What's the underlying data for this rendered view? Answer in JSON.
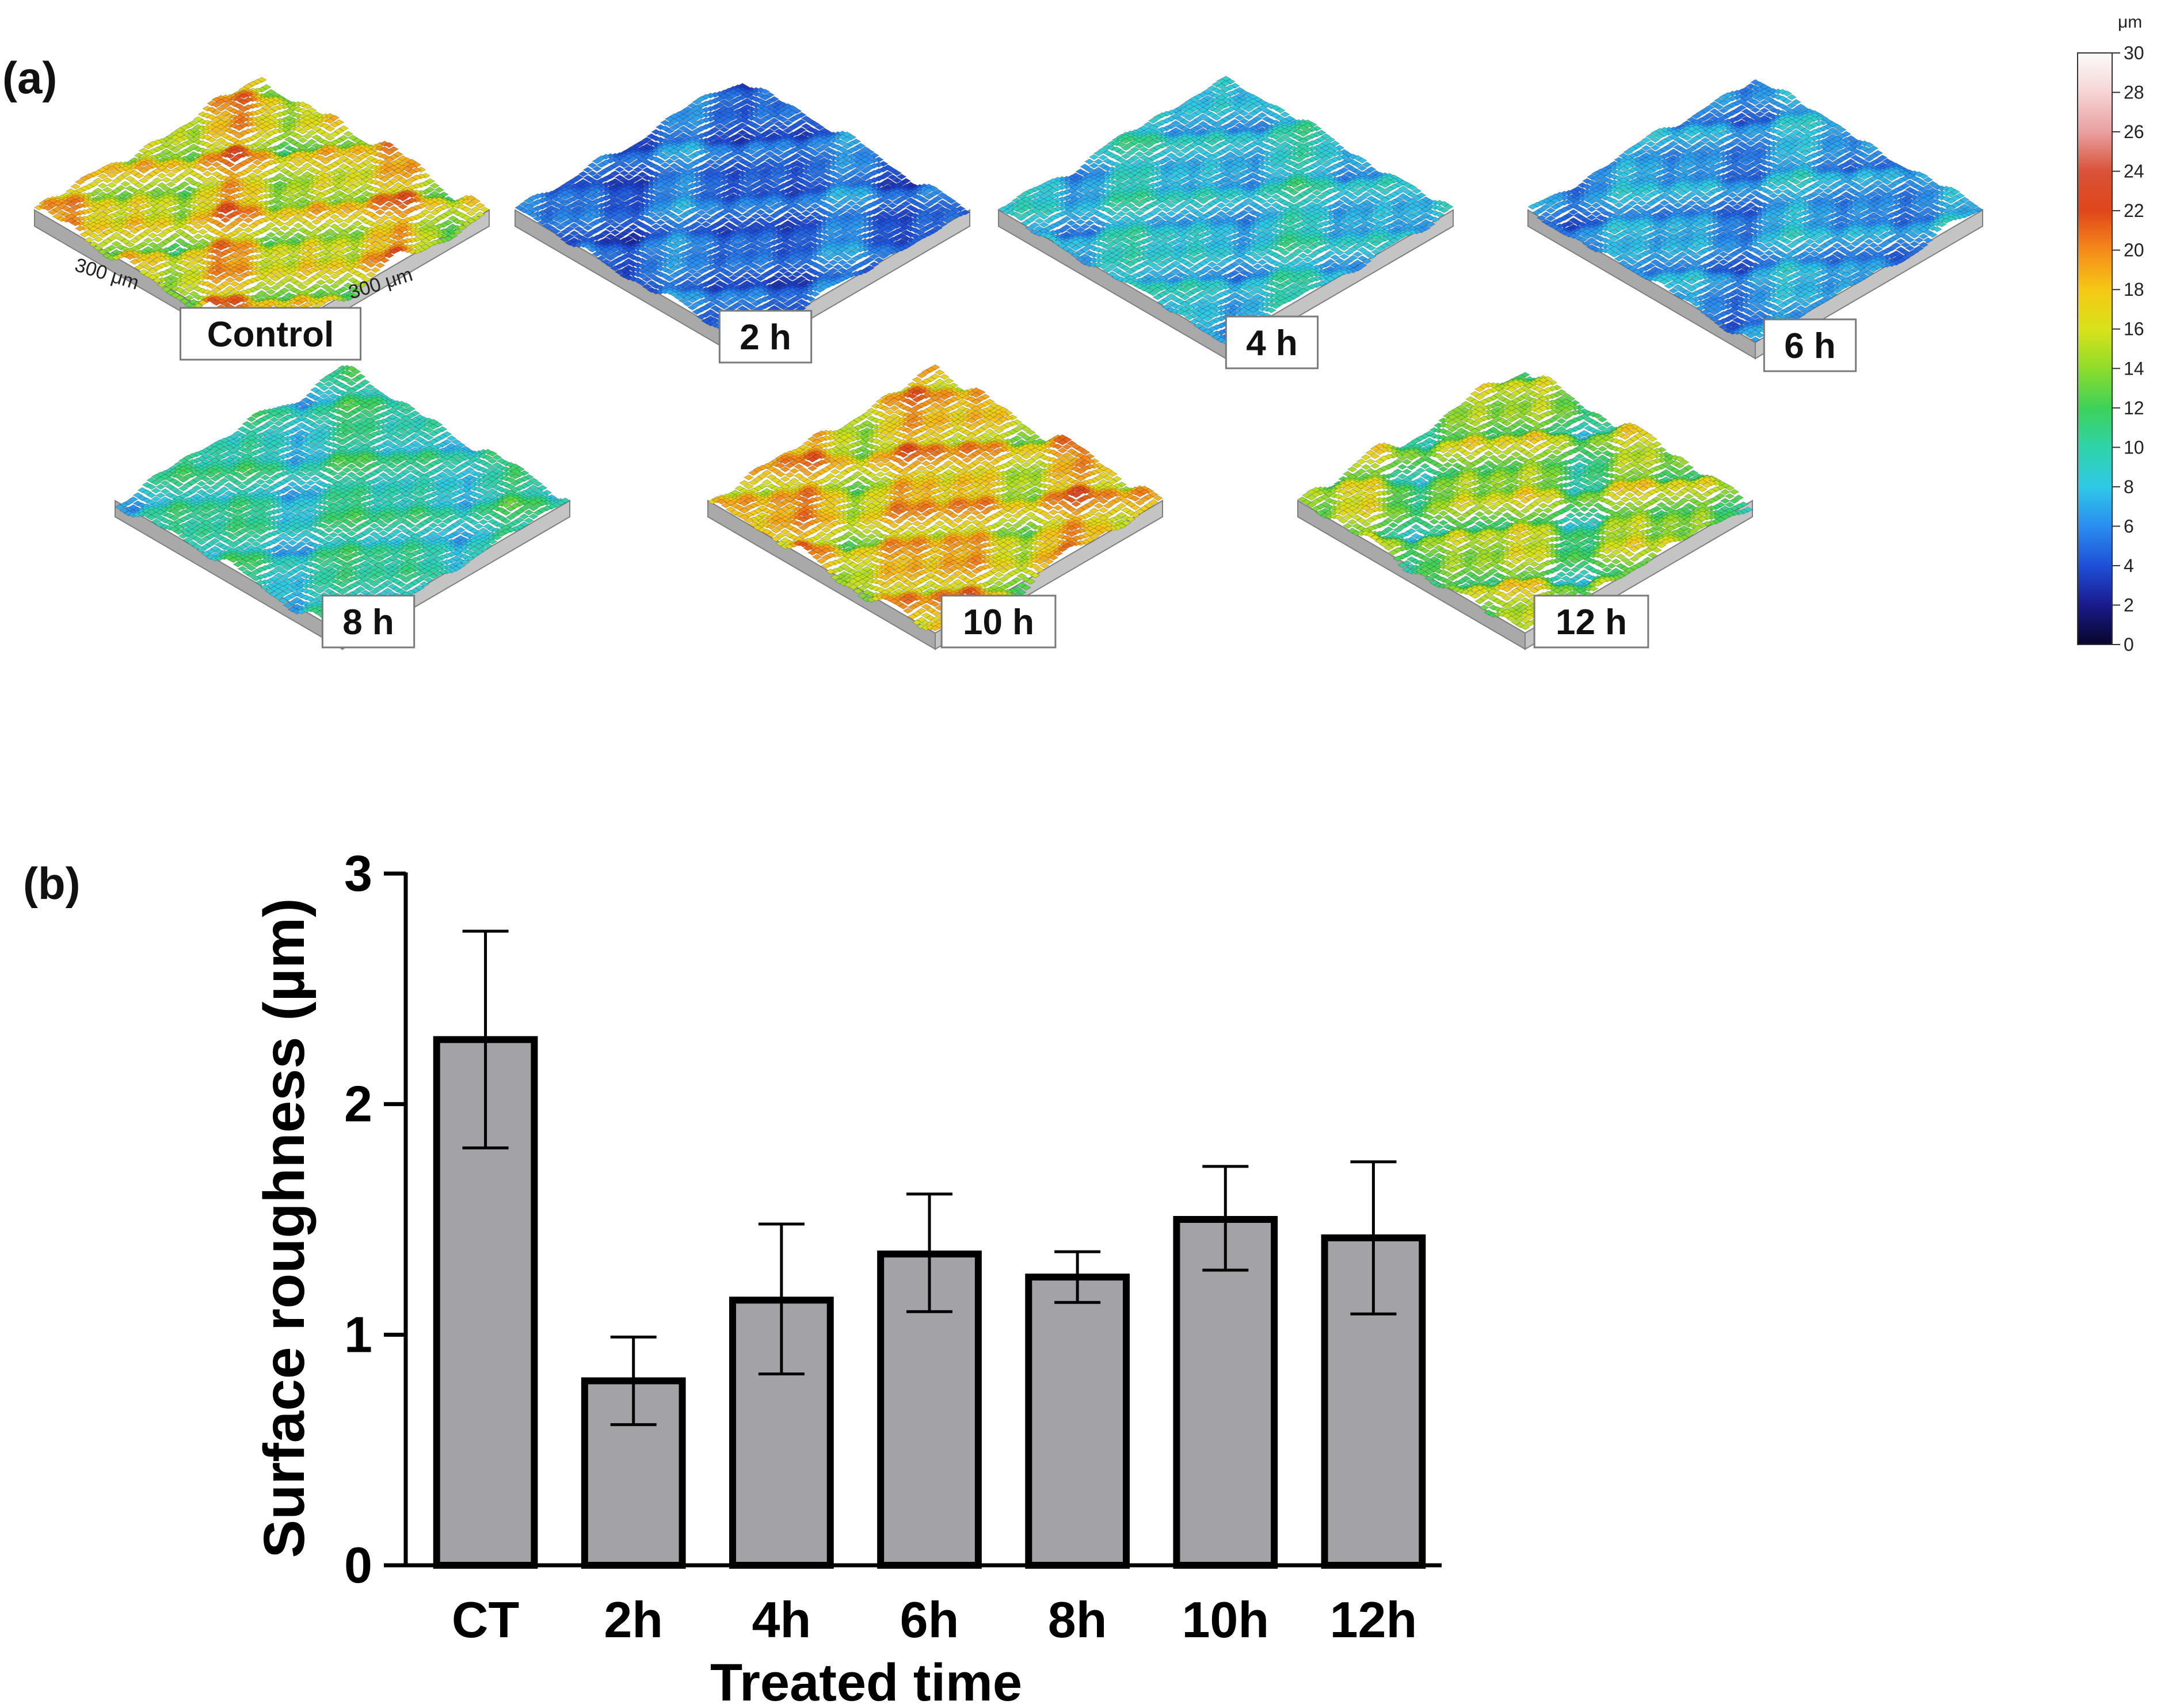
{
  "panel_a": {
    "label": "(a)",
    "dimension_label": "300 μm",
    "samples": [
      {
        "label": "Control",
        "base_level": 0.55,
        "spread": 0.22
      },
      {
        "label": "2 h",
        "base_level": 0.17,
        "spread": 0.1
      },
      {
        "label": "4 h",
        "base_level": 0.27,
        "spread": 0.12
      },
      {
        "label": "6 h",
        "base_level": 0.22,
        "spread": 0.11
      },
      {
        "label": "8 h",
        "base_level": 0.32,
        "spread": 0.13
      },
      {
        "label": "10 h",
        "base_level": 0.58,
        "spread": 0.2
      },
      {
        "label": "12 h",
        "base_level": 0.45,
        "spread": 0.22
      }
    ],
    "colorbar": {
      "unit": "μm",
      "ticks": [
        "0",
        "2",
        "4",
        "6",
        "8",
        "10",
        "12",
        "14",
        "16",
        "18",
        "20",
        "22",
        "24",
        "26",
        "28",
        "30"
      ],
      "range": [
        0,
        30
      ],
      "stops": [
        "#07062a",
        "#1a1a8c",
        "#1f4fd8",
        "#2a8df0",
        "#2fc9e6",
        "#2fd3a8",
        "#3cd25a",
        "#8fdc2a",
        "#d8e21a",
        "#f5c815",
        "#f58a1a",
        "#e0461a",
        "#d9523a",
        "#e8a0a0",
        "#f6d4d4",
        "#fbfbfb"
      ]
    }
  },
  "panel_b": {
    "label": "(b)"
  },
  "chart_data": {
    "type": "bar",
    "title": "",
    "categories": [
      "CT",
      "2h",
      "4h",
      "6h",
      "8h",
      "10h",
      "12h"
    ],
    "values": [
      2.28,
      0.8,
      1.15,
      1.35,
      1.25,
      1.5,
      1.42
    ],
    "error_upper": [
      2.75,
      0.99,
      1.48,
      1.61,
      1.36,
      1.73,
      1.75
    ],
    "error_lower": [
      1.81,
      0.61,
      0.83,
      1.1,
      1.14,
      1.28,
      1.09
    ],
    "xlabel": "Treated time",
    "ylabel": "Surface roughness (µm)",
    "ylim": [
      0,
      3
    ],
    "yticks": [
      0,
      1,
      2,
      3
    ],
    "bar_color": "#a3a2a7",
    "edge_color": "#000000",
    "grid": false
  }
}
